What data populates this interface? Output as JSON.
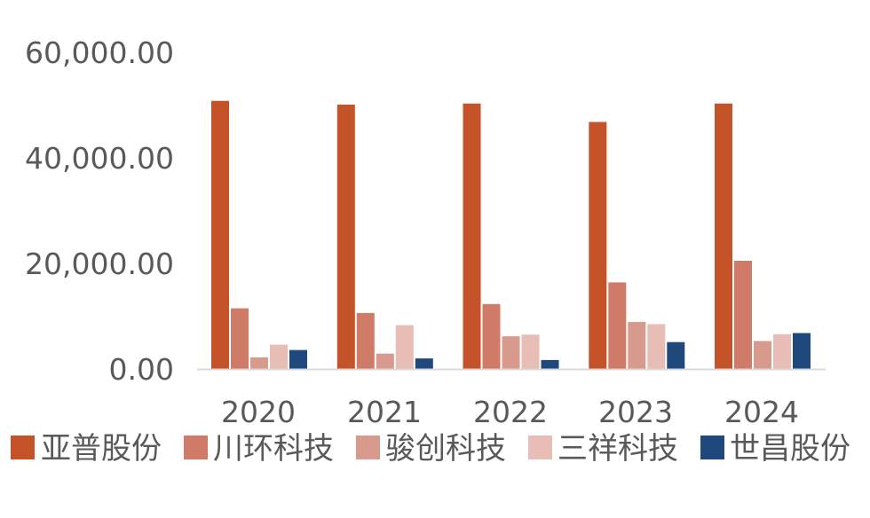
{
  "chart_data": {
    "type": "bar",
    "categories": [
      "2020",
      "2021",
      "2022",
      "2023",
      "2024"
    ],
    "series": [
      {
        "name": "亚普股份",
        "color": "#C5532A",
        "values": [
          50800,
          50100,
          50300,
          46800,
          50300
        ]
      },
      {
        "name": "川环科技",
        "color": "#D07B68",
        "values": [
          11500,
          10600,
          12300,
          16400,
          20500
        ]
      },
      {
        "name": "骏创科技",
        "color": "#D99A8E",
        "values": [
          2200,
          2900,
          6200,
          8900,
          5300
        ]
      },
      {
        "name": "三祥科技",
        "color": "#E8BDB5",
        "values": [
          4600,
          8300,
          6500,
          8500,
          6600
        ]
      },
      {
        "name": "世昌股份",
        "color": "#1F497D",
        "values": [
          3600,
          2000,
          1700,
          5100,
          6800
        ]
      }
    ],
    "yticks": [
      "0.00",
      "20,000.00",
      "40,000.00",
      "60,000.00"
    ],
    "ylim": [
      0,
      60000
    ],
    "grid": false,
    "legend_position": "bottom",
    "title": "",
    "xlabel": "",
    "ylabel": ""
  }
}
